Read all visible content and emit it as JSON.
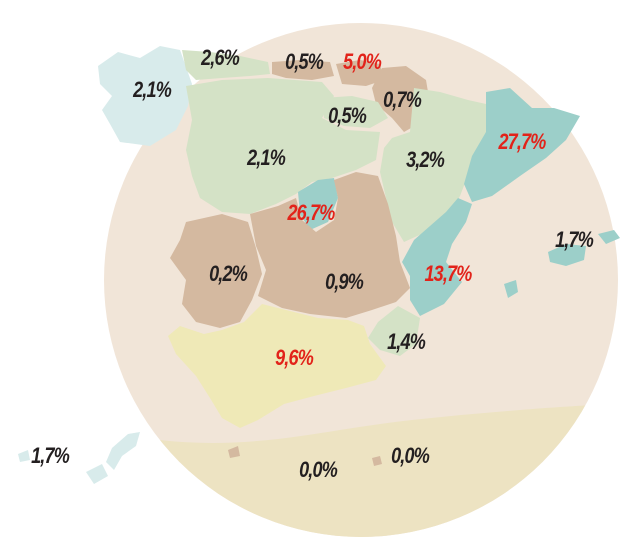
{
  "colors": {
    "circle": "#f1e5d8",
    "circle_south": "#ede3c2",
    "green": "#d4e2c6",
    "brown": "#d4b9a0",
    "teal": "#9ccfc9",
    "yellow": "#efe9b7",
    "light_blue": "#d8ebeb",
    "label_dark": "#231f20",
    "label_red": "#e2231a"
  },
  "regions": [
    {
      "id": "galicia",
      "value": "2,1%",
      "highlight": false
    },
    {
      "id": "asturias",
      "value": "2,6%",
      "highlight": false
    },
    {
      "id": "cantabria",
      "value": "0,5%",
      "highlight": false
    },
    {
      "id": "pais-vasco",
      "value": "5,0%",
      "highlight": true
    },
    {
      "id": "navarra",
      "value": "0,7%",
      "highlight": false
    },
    {
      "id": "la-rioja",
      "value": "0,5%",
      "highlight": false
    },
    {
      "id": "castilla-leon",
      "value": "2,1%",
      "highlight": false
    },
    {
      "id": "aragon",
      "value": "3,2%",
      "highlight": false
    },
    {
      "id": "cataluna",
      "value": "27,7%",
      "highlight": true
    },
    {
      "id": "madrid",
      "value": "26,7%",
      "highlight": true
    },
    {
      "id": "extremadura",
      "value": "0,2%",
      "highlight": false
    },
    {
      "id": "castilla-la-mancha",
      "value": "0,9%",
      "highlight": false
    },
    {
      "id": "valencia",
      "value": "13,7%",
      "highlight": true
    },
    {
      "id": "baleares",
      "value": "1,7%",
      "highlight": false
    },
    {
      "id": "murcia",
      "value": "1,4%",
      "highlight": false
    },
    {
      "id": "andalucia",
      "value": "9,6%",
      "highlight": true
    },
    {
      "id": "canarias",
      "value": "1,7%",
      "highlight": false
    },
    {
      "id": "ceuta",
      "value": "0,0%",
      "highlight": false
    },
    {
      "id": "melilla",
      "value": "0,0%",
      "highlight": false
    }
  ]
}
